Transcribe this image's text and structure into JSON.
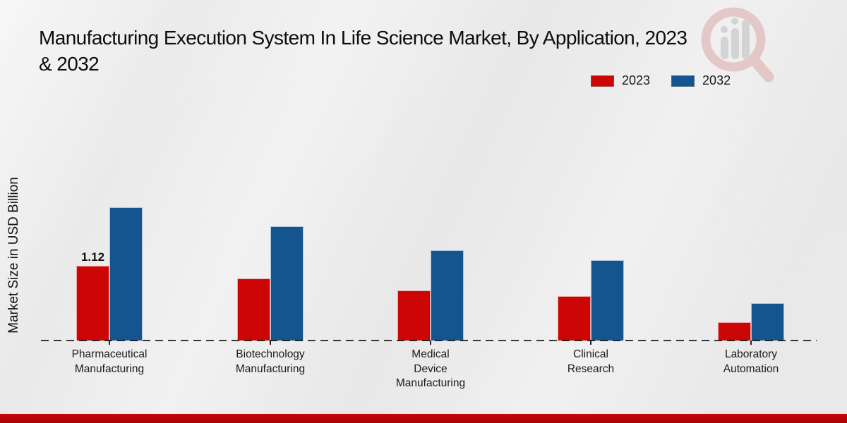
{
  "page": {
    "title_lines": [
      "Manufacturing Execution System In Life Science Market, By Application, 2023",
      "& 2032"
    ],
    "y_axis_label": "Market Size in USD Billion"
  },
  "legend": [
    {
      "label": "2023",
      "color": "#cc0505"
    },
    {
      "label": "2032",
      "color": "#14548f"
    }
  ],
  "icons": {
    "watermark": "magnifier-bar-chart-logo-icon"
  },
  "colors": {
    "background": "#e9e9e9",
    "series_2023": "#cc0505",
    "series_2032": "#14548f",
    "baseline": "#1a1a1a",
    "bottom_strip": "#b10404"
  },
  "chart_data": {
    "type": "bar",
    "title": "Manufacturing Execution System In Life Science Market, By Application, 2023 & 2032",
    "xlabel": "",
    "ylabel": "Market Size in USD Billion",
    "ylim": [
      0,
      2.2
    ],
    "grid": false,
    "legend_position": "top-right",
    "baseline_style": "dashed",
    "categories": [
      "Pharmaceutical Manufacturing",
      "Biotechnology Manufacturing",
      "Medical Device Manufacturing",
      "Clinical Research",
      "Laboratory Automation"
    ],
    "category_label_lines": [
      [
        "Pharmaceutical",
        "Manufacturing"
      ],
      [
        "Biotechnology",
        "Manufacturing"
      ],
      [
        "Medical",
        "Device",
        "Manufacturing"
      ],
      [
        "Clinical",
        "Research"
      ],
      [
        "Laboratory",
        "Automation"
      ]
    ],
    "series": [
      {
        "name": "2023",
        "color": "#cc0505",
        "values": [
          1.12,
          0.93,
          0.75,
          0.67,
          0.27
        ],
        "value_labels": [
          "1.12",
          null,
          null,
          null,
          null
        ]
      },
      {
        "name": "2032",
        "color": "#14548f",
        "values": [
          2.0,
          1.71,
          1.35,
          1.2,
          0.56
        ],
        "value_labels": [
          null,
          null,
          null,
          null,
          null
        ]
      }
    ]
  }
}
